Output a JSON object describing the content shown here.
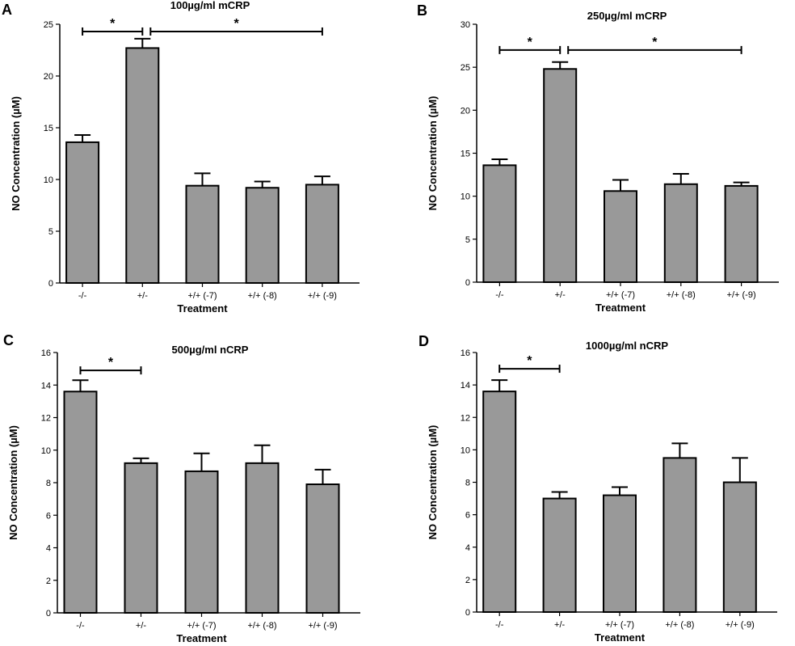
{
  "figure": {
    "panel_letters": [
      "A",
      "B",
      "C",
      "D"
    ]
  },
  "colors": {
    "bar_fill": "#999999",
    "stroke": "#000000",
    "background": "#ffffff"
  },
  "chart_data": [
    {
      "panel": "A",
      "type": "bar",
      "title": "100µg/ml mCRP",
      "xlabel": "Treatment",
      "ylabel": "NO Concentration (µM)",
      "categories": [
        "-/-",
        "+/-",
        "+/+ (-7)",
        "+/+ (-8)",
        "+/+ (-9)"
      ],
      "values": [
        13.6,
        22.7,
        9.4,
        9.2,
        9.5
      ],
      "errors": [
        0.7,
        0.9,
        1.2,
        0.6,
        0.8
      ],
      "ylim": [
        0,
        25
      ],
      "yticks": [
        "0",
        "5",
        "10",
        "15",
        "20",
        "25"
      ],
      "significance": [
        {
          "from": 0,
          "to": 1,
          "y": 24.3,
          "label": "*"
        },
        {
          "from": 1,
          "to": 4,
          "y": 24.3,
          "label": "*"
        }
      ]
    },
    {
      "panel": "B",
      "type": "bar",
      "title": "250µg/ml mCRP",
      "xlabel": "Treatment",
      "ylabel": "NO Concentration (µM)",
      "categories": [
        "-/-",
        "+/-",
        "+/+ (-7)",
        "+/+ (-8)",
        "+/+ (-9)"
      ],
      "values": [
        13.6,
        24.8,
        10.6,
        11.4,
        11.2
      ],
      "errors": [
        0.7,
        0.8,
        1.3,
        1.2,
        0.4
      ],
      "ylim": [
        0,
        30
      ],
      "yticks": [
        "0",
        "5",
        "10",
        "15",
        "20",
        "25",
        "30"
      ],
      "significance": [
        {
          "from": 0,
          "to": 1,
          "y": 27.0,
          "label": "*"
        },
        {
          "from": 1,
          "to": 4,
          "y": 27.0,
          "label": "*"
        }
      ]
    },
    {
      "panel": "C",
      "type": "bar",
      "title": "500µg/ml nCRP",
      "xlabel": "Treatment",
      "ylabel": "NO Concentration (µM)",
      "categories": [
        "-/-",
        "+/-",
        "+/+ (-7)",
        "+/+ (-8)",
        "+/+ (-9)"
      ],
      "values": [
        13.6,
        9.2,
        8.7,
        9.2,
        7.9
      ],
      "errors": [
        0.7,
        0.3,
        1.1,
        1.1,
        0.9
      ],
      "ylim": [
        0,
        16
      ],
      "yticks": [
        "0",
        "2",
        "4",
        "6",
        "8",
        "10",
        "12",
        "14",
        "16"
      ],
      "significance": [
        {
          "from": 0,
          "to": 1,
          "y": 14.9,
          "label": "*"
        }
      ]
    },
    {
      "panel": "D",
      "type": "bar",
      "title": "1000µg/ml nCRP",
      "xlabel": "Treatment",
      "ylabel": "NO Concentration (µM)",
      "categories": [
        "-/-",
        "+/-",
        "+/+ (-7)",
        "+/+ (-8)",
        "+/+ (-9)"
      ],
      "values": [
        13.6,
        7.0,
        7.2,
        9.5,
        8.0
      ],
      "errors": [
        0.7,
        0.4,
        0.5,
        0.9,
        1.5
      ],
      "ylim": [
        0,
        16
      ],
      "yticks": [
        "0",
        "2",
        "4",
        "6",
        "8",
        "10",
        "12",
        "14",
        "16"
      ],
      "significance": [
        {
          "from": 0,
          "to": 1,
          "y": 15.0,
          "label": "*"
        }
      ]
    }
  ]
}
